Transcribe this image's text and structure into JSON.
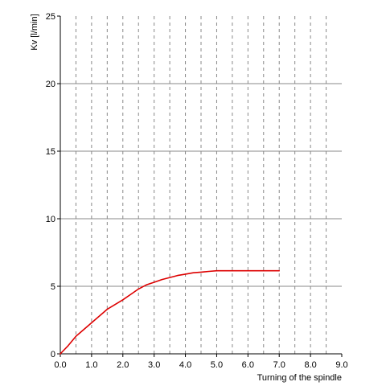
{
  "chart_data": {
    "type": "line",
    "xlabel": "Turning of the spindle",
    "ylabel": "Kv [l/min]",
    "xlim": [
      0,
      9
    ],
    "ylim": [
      0,
      25
    ],
    "x_ticks": [
      "0.0",
      "1.0",
      "2.0",
      "3.0",
      "4.0",
      "5.0",
      "6.0",
      "7.0",
      "8.0",
      "9.0"
    ],
    "y_ticks": [
      "0",
      "5",
      "10",
      "15",
      "20",
      "25"
    ],
    "x_gridlines": [
      0.5,
      1.0,
      1.5,
      2.0,
      2.5,
      3.0,
      3.5,
      4.0,
      4.5,
      5.0,
      5.5,
      6.0,
      6.5,
      7.0,
      7.5,
      8.0,
      8.5
    ],
    "y_gridlines": [
      5,
      10,
      15,
      20
    ],
    "grid": true,
    "colors": {
      "series": "#dd0000",
      "grid": "#888888",
      "axis": "#000000"
    },
    "series": [
      {
        "x": [
          0.0,
          0.25,
          0.5,
          0.65,
          1.0,
          1.5,
          2.0,
          2.25,
          2.5,
          2.75,
          3.0,
          3.25,
          3.5,
          3.75,
          4.0,
          4.25,
          4.5,
          4.75,
          5.0,
          5.5,
          6.0,
          6.5,
          7.0
        ],
        "values": [
          0.0,
          0.6,
          1.3,
          1.6,
          2.3,
          3.3,
          4.0,
          4.4,
          4.8,
          5.1,
          5.3,
          5.5,
          5.65,
          5.8,
          5.9,
          6.0,
          6.05,
          6.1,
          6.15,
          6.15,
          6.15,
          6.15,
          6.15
        ]
      }
    ]
  }
}
